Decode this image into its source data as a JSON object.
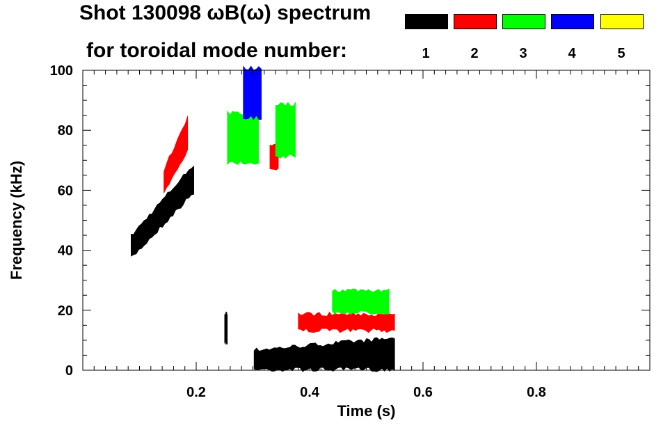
{
  "chart_data": {
    "type": "heatmap",
    "title": "Shot 130098 ωB(ω) spectrum",
    "subtitle": "for toroidal mode number:",
    "xlabel": "Time (s)",
    "ylabel": "Frequency (kHz)",
    "xlim": [
      0.0,
      1.0
    ],
    "ylim": [
      0,
      100
    ],
    "xticks": [
      0.2,
      0.4,
      0.6,
      0.8
    ],
    "xtick_labels": [
      "0.2",
      "0.4",
      "0.6",
      "0.8"
    ],
    "yticks": [
      0,
      20,
      40,
      60,
      80,
      100
    ],
    "ytick_labels": [
      "0",
      "20",
      "40",
      "60",
      "80",
      "100"
    ],
    "grid": false,
    "legend_position": "top-right",
    "legend": [
      {
        "label": "1",
        "color": "#000000"
      },
      {
        "label": "2",
        "color": "#ff0000"
      },
      {
        "label": "3",
        "color": "#00ff00"
      },
      {
        "label": "4",
        "color": "#0000ff"
      },
      {
        "label": "5",
        "color": "#ffff00"
      }
    ],
    "series": [
      {
        "name": "1",
        "color": "#000000",
        "regions": [
          {
            "t0": 0.085,
            "t1": 0.196,
            "f_lo_start": 38,
            "f_lo_end": 60,
            "f_hi_start": 44,
            "f_hi_end": 68
          },
          {
            "t0": 0.302,
            "t1": 0.55,
            "f_lo": 1,
            "f_hi_start": 6,
            "f_hi_end": 10
          },
          {
            "t0": 0.25,
            "t1": 0.255,
            "f_lo": 10,
            "f_hi": 18
          }
        ]
      },
      {
        "name": "2",
        "color": "#ff0000",
        "regions": [
          {
            "t0": 0.143,
            "t1": 0.185,
            "f_lo_start": 60,
            "f_lo_end": 74,
            "f_hi_start": 66,
            "f_hi_end": 84
          },
          {
            "t0": 0.38,
            "t1": 0.55,
            "f_lo": 14,
            "f_hi": 18
          },
          {
            "t0": 0.33,
            "t1": 0.345,
            "f_lo": 68,
            "f_hi": 74
          }
        ]
      },
      {
        "name": "3",
        "color": "#00ff00",
        "regions": [
          {
            "t0": 0.255,
            "t1": 0.31,
            "f_lo": 70,
            "f_hi": 85
          },
          {
            "t0": 0.34,
            "t1": 0.375,
            "f_lo": 72,
            "f_hi": 88
          },
          {
            "t0": 0.44,
            "t1": 0.54,
            "f_lo": 20,
            "f_hi": 26
          }
        ]
      },
      {
        "name": "4",
        "color": "#0000ff",
        "regions": [
          {
            "t0": 0.283,
            "t1": 0.315,
            "f_lo": 85,
            "f_hi": 100
          }
        ]
      },
      {
        "name": "5",
        "color": "#ffff00",
        "regions": []
      }
    ]
  }
}
